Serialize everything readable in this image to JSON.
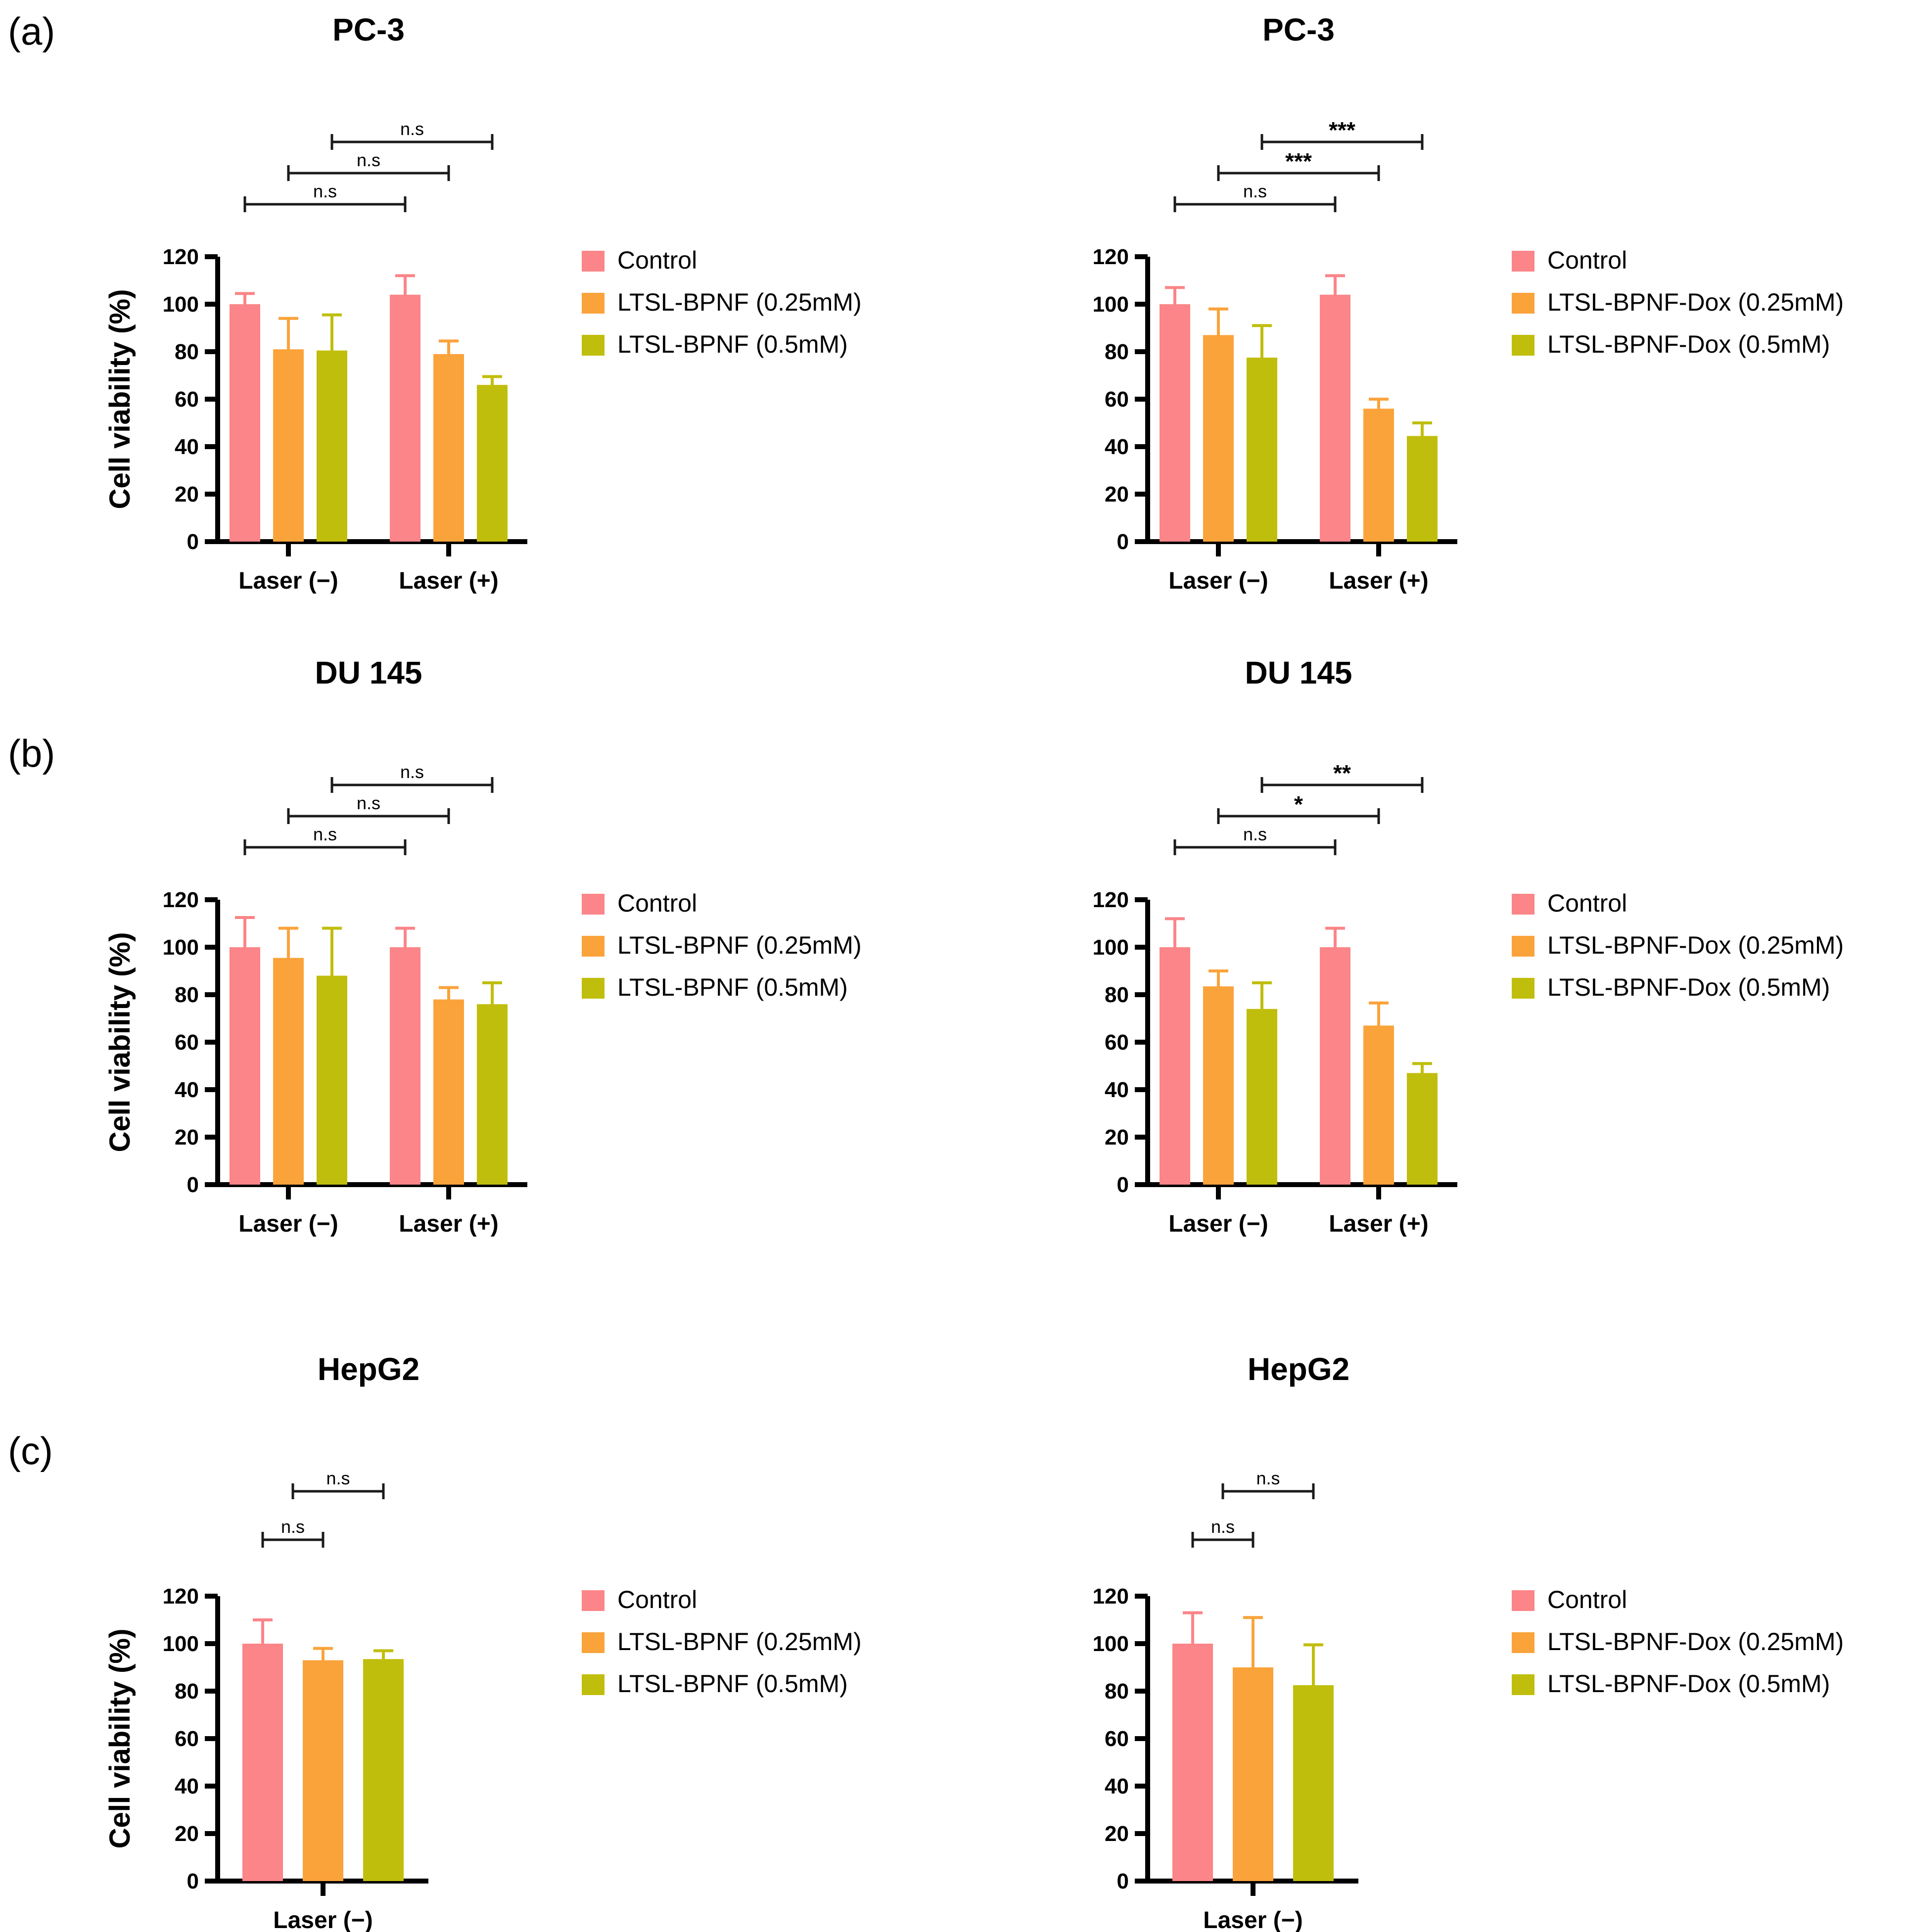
{
  "panels": [
    {
      "label": "(a)"
    },
    {
      "label": "(b)"
    },
    {
      "label": "(c)"
    }
  ],
  "colors": {
    "control": "#FB8588",
    "ltsl_025": "#FAA33B",
    "ltsl_05": "#C0BE0C",
    "axis": "#000000",
    "bracket": "#1a1a1a"
  },
  "chart_data": [
    {
      "id": "pc3-ltsl-bpnf",
      "type": "bar",
      "panel": "a",
      "column": "left",
      "title": "PC-3",
      "ylabel": "Cell viability (%)",
      "ylim": [
        0,
        120
      ],
      "yticks": [
        0,
        20,
        40,
        60,
        80,
        100,
        120
      ],
      "categories": [
        "Laser (−)",
        "Laser (+)"
      ],
      "series": [
        {
          "name": "Control",
          "color": "control",
          "values": [
            100,
            104
          ],
          "errors": [
            4.5,
            8
          ]
        },
        {
          "name": "LTSL-BPNF (0.25mM)",
          "color": "ltsl_025",
          "values": [
            81,
            79
          ],
          "errors": [
            13,
            5.5
          ]
        },
        {
          "name": "LTSL-BPNF (0.5mM)",
          "color": "ltsl_05",
          "values": [
            80.5,
            66
          ],
          "errors": [
            15,
            3.5
          ]
        }
      ],
      "significance": [
        {
          "label": "n.s",
          "from_bar": 0,
          "to_bar": 3,
          "level": 0
        },
        {
          "label": "n.s",
          "from_bar": 1,
          "to_bar": 4,
          "level": 1
        },
        {
          "label": "n.s",
          "from_bar": 2,
          "to_bar": 5,
          "level": 2
        }
      ]
    },
    {
      "id": "pc3-ltsl-bpnf-dox",
      "type": "bar",
      "panel": "a",
      "column": "right",
      "title": "PC-3",
      "ylabel": "Cell viability (%)",
      "ylim": [
        0,
        120
      ],
      "yticks": [
        0,
        20,
        40,
        60,
        80,
        100,
        120
      ],
      "categories": [
        "Laser (−)",
        "Laser (+)"
      ],
      "series": [
        {
          "name": "Control",
          "color": "control",
          "values": [
            100,
            104
          ],
          "errors": [
            7,
            8
          ]
        },
        {
          "name": "LTSL-BPNF-Dox (0.25mM)",
          "color": "ltsl_025",
          "values": [
            87,
            56
          ],
          "errors": [
            11,
            4
          ]
        },
        {
          "name": "LTSL-BPNF-Dox (0.5mM)",
          "color": "ltsl_05",
          "values": [
            77.5,
            44.5
          ],
          "errors": [
            13.5,
            5.5
          ]
        }
      ],
      "significance": [
        {
          "label": "n.s",
          "from_bar": 0,
          "to_bar": 3,
          "level": 0
        },
        {
          "label": "***",
          "from_bar": 1,
          "to_bar": 4,
          "level": 1
        },
        {
          "label": "***",
          "from_bar": 2,
          "to_bar": 5,
          "level": 2
        }
      ]
    },
    {
      "id": "du145-ltsl-bpnf",
      "type": "bar",
      "panel": "b",
      "column": "left",
      "title": "DU 145",
      "ylabel": "Cell viability (%)",
      "ylim": [
        0,
        120
      ],
      "yticks": [
        0,
        20,
        40,
        60,
        80,
        100,
        120
      ],
      "categories": [
        "Laser (−)",
        "Laser (+)"
      ],
      "series": [
        {
          "name": "Control",
          "color": "control",
          "values": [
            100,
            100
          ],
          "errors": [
            12.5,
            8
          ]
        },
        {
          "name": "LTSL-BPNF (0.25mM)",
          "color": "ltsl_025",
          "values": [
            95.5,
            78
          ],
          "errors": [
            12.5,
            5
          ]
        },
        {
          "name": "LTSL-BPNF (0.5mM)",
          "color": "ltsl_05",
          "values": [
            88,
            76
          ],
          "errors": [
            20,
            9
          ]
        }
      ],
      "significance": [
        {
          "label": "n.s",
          "from_bar": 0,
          "to_bar": 3,
          "level": 0
        },
        {
          "label": "n.s",
          "from_bar": 1,
          "to_bar": 4,
          "level": 1
        },
        {
          "label": "n.s",
          "from_bar": 2,
          "to_bar": 5,
          "level": 2
        }
      ]
    },
    {
      "id": "du145-ltsl-bpnf-dox",
      "type": "bar",
      "panel": "b",
      "column": "right",
      "title": "DU 145",
      "ylabel": "Cell viability (%)",
      "ylim": [
        0,
        120
      ],
      "yticks": [
        0,
        20,
        40,
        60,
        80,
        100,
        120
      ],
      "categories": [
        "Laser (−)",
        "Laser (+)"
      ],
      "series": [
        {
          "name": "Control",
          "color": "control",
          "values": [
            100,
            100
          ],
          "errors": [
            12,
            8
          ]
        },
        {
          "name": "LTSL-BPNF-Dox (0.25mM)",
          "color": "ltsl_025",
          "values": [
            83.5,
            67
          ],
          "errors": [
            6.5,
            9.5
          ]
        },
        {
          "name": "LTSL-BPNF-Dox (0.5mM)",
          "color": "ltsl_05",
          "values": [
            74,
            47
          ],
          "errors": [
            11,
            4
          ]
        }
      ],
      "significance": [
        {
          "label": "n.s",
          "from_bar": 0,
          "to_bar": 3,
          "level": 0
        },
        {
          "label": "*",
          "from_bar": 1,
          "to_bar": 4,
          "level": 1
        },
        {
          "label": "**",
          "from_bar": 2,
          "to_bar": 5,
          "level": 2
        }
      ]
    },
    {
      "id": "hepg2-ltsl-bpnf",
      "type": "bar",
      "panel": "c",
      "column": "left",
      "title": "HepG2",
      "ylabel": "Cell viability (%)",
      "ylim": [
        0,
        120
      ],
      "yticks": [
        0,
        20,
        40,
        60,
        80,
        100,
        120
      ],
      "categories": [
        "Laser (−)"
      ],
      "series": [
        {
          "name": "Control",
          "color": "control",
          "values": [
            100
          ],
          "errors": [
            10
          ]
        },
        {
          "name": "LTSL-BPNF (0.25mM)",
          "color": "ltsl_025",
          "values": [
            93
          ],
          "errors": [
            5
          ]
        },
        {
          "name": "LTSL-BPNF (0.5mM)",
          "color": "ltsl_05",
          "values": [
            93.5
          ],
          "errors": [
            3.5
          ]
        }
      ],
      "significance": [
        {
          "label": "n.s",
          "from_bar": 0,
          "to_bar": 1,
          "level": 0
        },
        {
          "label": "n.s",
          "from_bar": 0,
          "to_bar": 2,
          "level": 1
        }
      ]
    },
    {
      "id": "hepg2-ltsl-bpnf-dox",
      "type": "bar",
      "panel": "c",
      "column": "right",
      "title": "HepG2",
      "ylabel": "Cell viability (%)",
      "ylim": [
        0,
        120
      ],
      "yticks": [
        0,
        20,
        40,
        60,
        80,
        100,
        120
      ],
      "categories": [
        "Laser (−)"
      ],
      "series": [
        {
          "name": "Control",
          "color": "control",
          "values": [
            100
          ],
          "errors": [
            13
          ]
        },
        {
          "name": "LTSL-BPNF-Dox (0.25mM)",
          "color": "ltsl_025",
          "values": [
            90
          ],
          "errors": [
            21
          ]
        },
        {
          "name": "LTSL-BPNF-Dox (0.5mM)",
          "color": "ltsl_05",
          "values": [
            82.5
          ],
          "errors": [
            17
          ]
        }
      ],
      "significance": [
        {
          "label": "n.s",
          "from_bar": 0,
          "to_bar": 1,
          "level": 0
        },
        {
          "label": "n.s",
          "from_bar": 0,
          "to_bar": 2,
          "level": 1
        }
      ]
    }
  ]
}
